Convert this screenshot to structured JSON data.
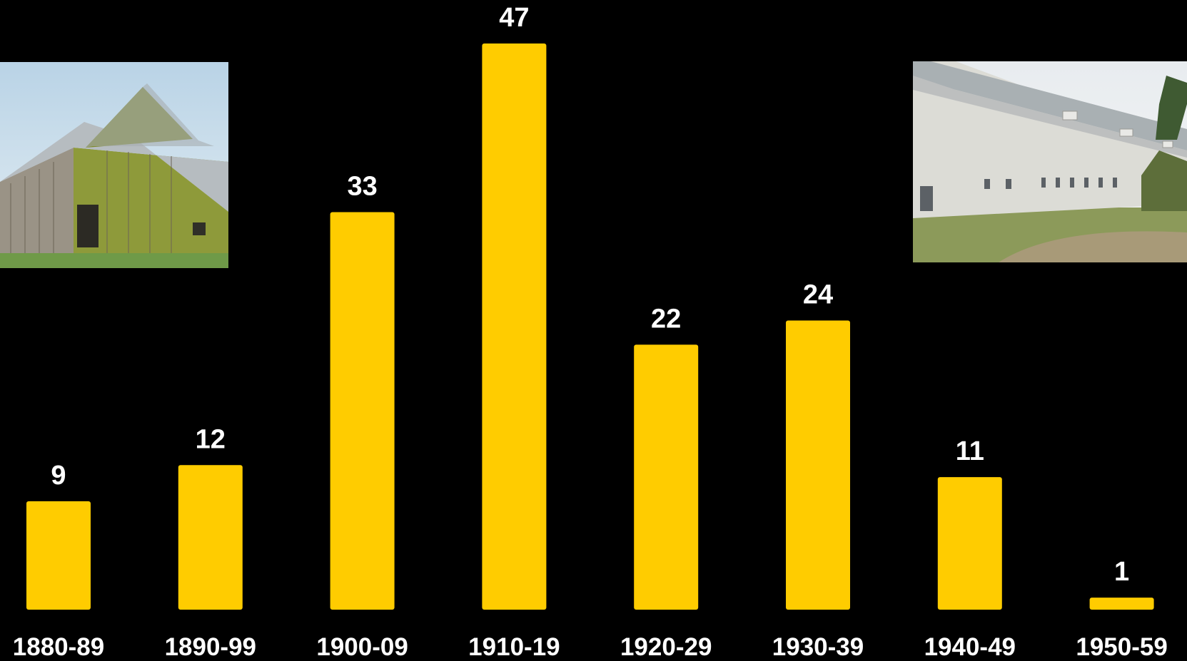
{
  "chart_data": {
    "type": "bar",
    "categories": [
      "1880-89",
      "1890-99",
      "1900-09",
      "1910-19",
      "1920-29",
      "1930-39",
      "1940-49",
      "1950-59"
    ],
    "values": [
      9,
      12,
      33,
      47,
      22,
      24,
      11,
      1
    ],
    "title": "",
    "xlabel": "",
    "ylabel": "",
    "ylim": [
      0,
      47
    ],
    "grid": false,
    "legend": "none",
    "bar_color": "#FFCC00",
    "label_color": "#FFFFFF",
    "background": "#000000"
  },
  "images": [
    {
      "name": "old-barn-photo"
    },
    {
      "name": "gambrel-dairy-barn-photo"
    }
  ]
}
